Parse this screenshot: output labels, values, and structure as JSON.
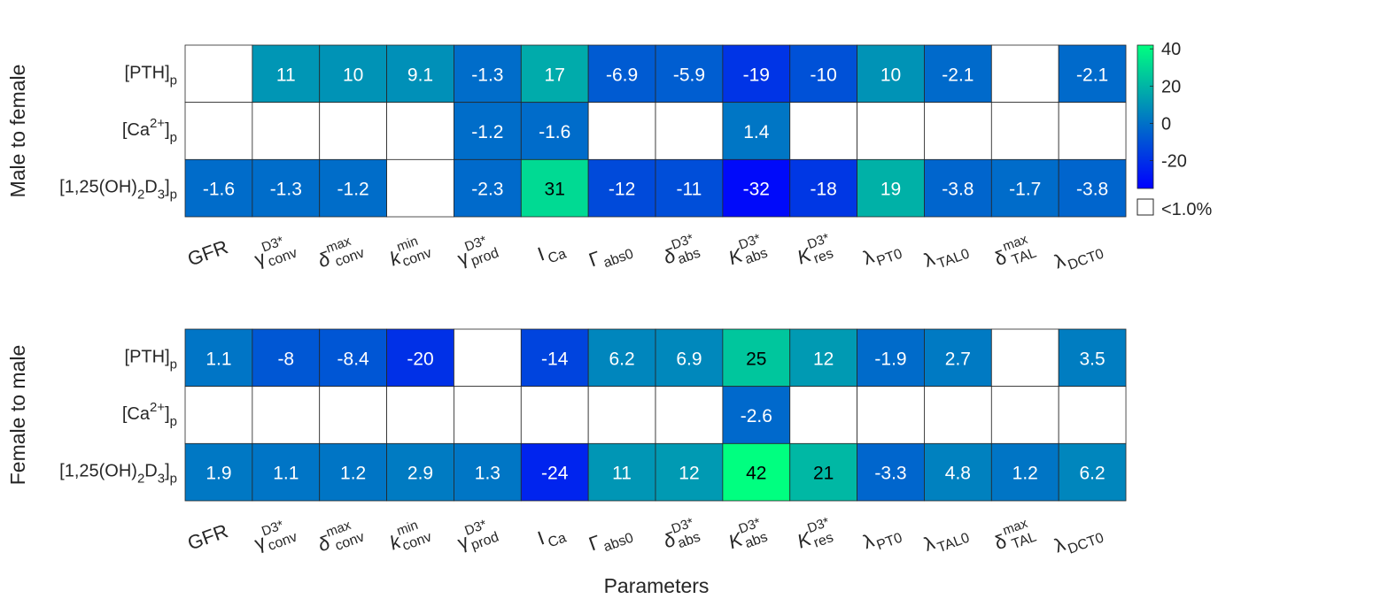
{
  "figure": {
    "xlabel": "Parameters",
    "colorbar": {
      "ticks": [
        40,
        20,
        0,
        -20
      ],
      "min": -35,
      "max": 42,
      "threshold_label": "<1.0%"
    }
  },
  "chart_data": [
    {
      "type": "heatmap",
      "panel_label": "Male to female",
      "rows": [
        "[PTH]p",
        "[Ca2+]p",
        "[1,25(OH)2D3]p"
      ],
      "columns": [
        "GFR",
        "γconv D3*",
        "δconv max",
        "kconv min",
        "γprod D3*",
        "ICa",
        "Γabs0",
        "δabs D3*",
        "Kabs D3*",
        "Kres D3*",
        "λPT0",
        "λTAL0",
        "δTAL max",
        "λDCT0"
      ],
      "values": [
        [
          null,
          11,
          10,
          9.1,
          -1.3,
          17,
          -6.9,
          -5.9,
          -19,
          -10,
          10,
          -2.1,
          null,
          -2.1
        ],
        [
          null,
          null,
          null,
          null,
          -1.2,
          -1.6,
          null,
          null,
          1.4,
          null,
          null,
          null,
          null,
          null
        ],
        [
          -1.6,
          -1.3,
          -1.2,
          null,
          -2.3,
          31,
          -12,
          -11,
          -32,
          -18,
          19,
          -3.8,
          -1.7,
          -3.8
        ]
      ],
      "labels": [
        [
          "",
          "11",
          "10",
          "9.1",
          "-1.3",
          "17",
          "-6.9",
          "-5.9",
          "-19",
          "-10",
          "10",
          "-2.1",
          "",
          "-2.1"
        ],
        [
          "",
          "",
          "",
          "",
          "-1.2",
          "-1.6",
          "",
          "",
          "1.4",
          "",
          "",
          "",
          "",
          ""
        ],
        [
          "-1.6",
          "-1.3",
          "-1.2",
          "",
          "-2.3",
          "31",
          "-12",
          "-11",
          "-32",
          "-18",
          "19",
          "-3.8",
          "-1.7",
          "-3.8"
        ]
      ]
    },
    {
      "type": "heatmap",
      "panel_label": "Female to male",
      "rows": [
        "[PTH]p",
        "[Ca2+]p",
        "[1,25(OH)2D3]p"
      ],
      "columns": [
        "GFR",
        "γconv D3*",
        "δconv max",
        "kconv min",
        "γprod D3*",
        "ICa",
        "Γabs0",
        "δabs D3*",
        "Kabs D3*",
        "Kres D3*",
        "λPT0",
        "λTAL0",
        "δTAL max",
        "λDCT0"
      ],
      "values": [
        [
          1.1,
          -8,
          -8.4,
          -20,
          null,
          -14,
          6.2,
          6.9,
          25,
          12,
          -1.9,
          2.7,
          null,
          3.5
        ],
        [
          null,
          null,
          null,
          null,
          null,
          null,
          null,
          null,
          -2.6,
          null,
          null,
          null,
          null,
          null
        ],
        [
          1.9,
          1.1,
          1.2,
          2.9,
          1.3,
          -24,
          11,
          12,
          42,
          21,
          -3.3,
          4.8,
          1.2,
          6.2
        ]
      ],
      "labels": [
        [
          "1.1",
          "-8",
          "-8.4",
          "-20",
          "",
          "-14",
          "6.2",
          "6.9",
          "25",
          "12",
          "-1.9",
          "2.7",
          "",
          "3.5"
        ],
        [
          "",
          "",
          "",
          "",
          "",
          "",
          "",
          "",
          "-2.6",
          "",
          "",
          "",
          "",
          ""
        ],
        [
          "1.9",
          "1.1",
          "1.2",
          "2.9",
          "1.3",
          "-24",
          "11",
          "12",
          "42",
          "21",
          "-3.3",
          "4.8",
          "1.2",
          "6.2"
        ]
      ]
    }
  ]
}
